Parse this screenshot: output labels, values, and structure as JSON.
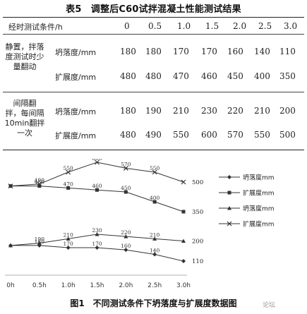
{
  "table": {
    "title": "表5　调整后C60试拌混凝土性能测试结果",
    "header_label": "经时测试条件/h",
    "times": [
      "0",
      "0.5",
      "1.0",
      "1.5",
      "2.0",
      "2.5",
      "3.0"
    ],
    "groups": [
      {
        "label_lines": [
          "静置，拌落",
          "度测试时少",
          "量翻动"
        ],
        "rows": [
          {
            "label": "坍落度/mm",
            "values": [
              "180",
              "180",
              "170",
              "170",
              "160",
              "140",
              "110"
            ]
          },
          {
            "label": "扩展度/mm",
            "values": [
              "480",
              "480",
              "470",
              "460",
              "450",
              "400",
              "350"
            ]
          }
        ]
      },
      {
        "label_lines": [
          "间隔翻",
          "拌，每间隔",
          "10min翻拌",
          "一次"
        ],
        "rows": [
          {
            "label": "坍落度/mm",
            "values": [
              "180",
              "190",
              "210",
              "230",
              "220",
              "210",
              "200"
            ]
          },
          {
            "label": "扩展度/mm",
            "values": [
              "480",
              "490",
              "550",
              "600",
              "570",
              "550",
              "500"
            ]
          }
        ]
      }
    ]
  },
  "chart_data": {
    "type": "line",
    "x": [
      "0h",
      "0.5h",
      "1.0h",
      "1.5h",
      "2.0h",
      "2.5h",
      "3.0h"
    ],
    "series": [
      {
        "name": "坍落度mm",
        "values": [
          180,
          180,
          170,
          170,
          160,
          140,
          110
        ],
        "end_label": "110",
        "marker": "diamond"
      },
      {
        "name": "扩展度mm",
        "values": [
          480,
          480,
          470,
          460,
          450,
          400,
          350
        ],
        "end_label": "350",
        "marker": "square"
      },
      {
        "name": "坍落度mm",
        "values": [
          180,
          190,
          210,
          230,
          220,
          210,
          200
        ],
        "end_label": "200",
        "marker": "triangle"
      },
      {
        "name": "扩展度mm",
        "values": [
          480,
          490,
          550,
          600,
          570,
          550,
          500
        ],
        "end_label": "500",
        "marker": "x"
      }
    ],
    "colors": {
      "line": "#333333"
    }
  },
  "figure": {
    "caption": "图1　不同测试条件下坍落度与扩展度数据图",
    "watermark": "论坛"
  }
}
